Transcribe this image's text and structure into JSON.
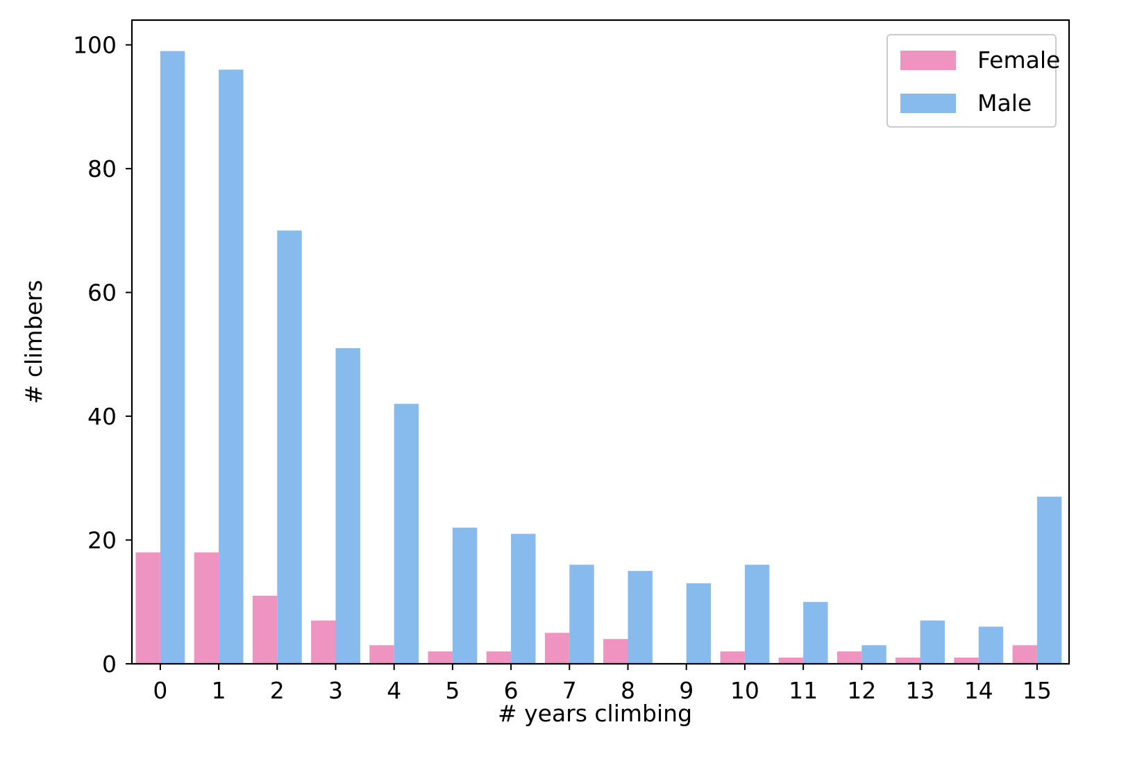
{
  "chart_data": {
    "type": "bar",
    "categories": [
      "0",
      "1",
      "2",
      "3",
      "4",
      "5",
      "6",
      "7",
      "8",
      "9",
      "10",
      "11",
      "12",
      "13",
      "14",
      "15"
    ],
    "series": [
      {
        "name": "Female",
        "color": "#ef94c1",
        "values": [
          18,
          18,
          11,
          7,
          3,
          2,
          2,
          5,
          4,
          0,
          2,
          1,
          2,
          1,
          1,
          3
        ]
      },
      {
        "name": "Male",
        "color": "#87baed",
        "values": [
          99,
          96,
          70,
          51,
          42,
          22,
          21,
          16,
          15,
          13,
          16,
          10,
          3,
          7,
          6,
          27
        ]
      }
    ],
    "xlabel": "# years climbing",
    "ylabel": "# climbers",
    "ylim": [
      0,
      104
    ],
    "yticks": [
      0,
      20,
      40,
      60,
      80,
      100
    ],
    "legend_position": "top-right",
    "grid": false
  }
}
